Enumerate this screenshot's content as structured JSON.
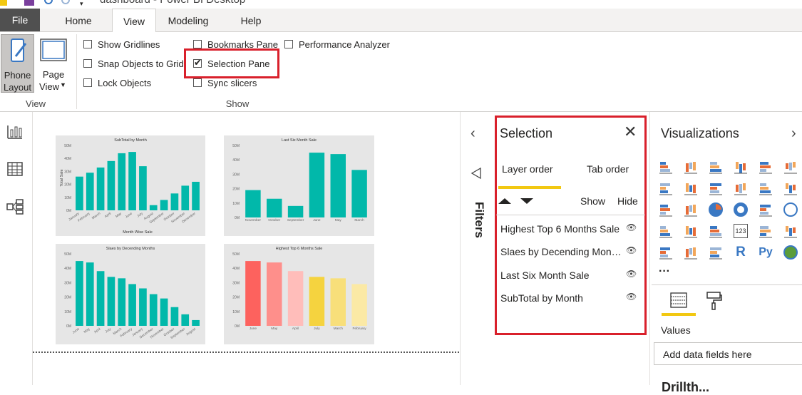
{
  "window": {
    "title": "dashboard - Power BI Desktop"
  },
  "ribbon_tabs": [
    "File",
    "Home",
    "View",
    "Modeling",
    "Help"
  ],
  "active_tab": "View",
  "view_group": {
    "phone_layout_line1": "Phone",
    "phone_layout_line2": "Layout",
    "page_view_line1": "Page",
    "page_view_line2": "View",
    "label": "View"
  },
  "show_group": {
    "label": "Show",
    "checkboxes": [
      {
        "label": "Show Gridlines",
        "checked": false
      },
      {
        "label": "Snap Objects to Grid",
        "checked": false
      },
      {
        "label": "Lock Objects",
        "checked": false
      },
      {
        "label": "Bookmarks Pane",
        "checked": false
      },
      {
        "label": "Selection Pane",
        "checked": true
      },
      {
        "label": "Sync slicers",
        "checked": false
      },
      {
        "label": "Performance Analyzer",
        "checked": false
      }
    ]
  },
  "filters": {
    "label": "Filters"
  },
  "selection_pane": {
    "title": "Selection",
    "tab_layer": "Layer order",
    "tab_tab": "Tab order",
    "show_label": "Show",
    "hide_label": "Hide",
    "items": [
      "Highest Top 6 Months Sale",
      "Slaes by Decending Mon…",
      "Last Six Month Sale",
      "SubTotal by Month"
    ]
  },
  "visualizations": {
    "title": "Visualizations",
    "more": "···",
    "values_label": "Values",
    "add_fields": "Add data fields here",
    "drill_partial": "Drillth..."
  },
  "colors": {
    "teal": "#01b8aa",
    "highlight_red": "#d9202b",
    "underline_yellow": "#f2c811",
    "grey_chart_bg": "#e6e6e6"
  },
  "chart_data": [
    {
      "type": "bar",
      "title": "SubTotal by Month",
      "xlabel": "Month Wise Sale",
      "ylabel": "Total Sale",
      "yticks": [
        "0M",
        "10M",
        "20M",
        "30M",
        "40M",
        "50M"
      ],
      "ylim": [
        0,
        50
      ],
      "categories": [
        "January",
        "February",
        "March",
        "April",
        "May",
        "June",
        "July",
        "August",
        "September",
        "October",
        "November",
        "December"
      ],
      "values": [
        26,
        29,
        33,
        38,
        44,
        45,
        34,
        4,
        8,
        13,
        19,
        22
      ],
      "color": "#01b8aa"
    },
    {
      "type": "bar",
      "title": "Last Six Month Sale",
      "xlabel": "",
      "ylabel": "",
      "yticks": [
        "0M",
        "10M",
        "20M",
        "30M",
        "40M",
        "50M"
      ],
      "ylim": [
        0,
        50
      ],
      "categories": [
        "November",
        "October",
        "September",
        "June",
        "May",
        "March"
      ],
      "values": [
        19,
        13,
        8,
        45,
        44,
        33
      ],
      "color": "#01b8aa"
    },
    {
      "type": "bar",
      "title": "Slaes by Decending Months",
      "xlabel": "",
      "ylabel": "",
      "yticks": [
        "0M",
        "10M",
        "20M",
        "30M",
        "40M",
        "50M"
      ],
      "ylim": [
        0,
        50
      ],
      "categories": [
        "June",
        "May",
        "April",
        "July",
        "March",
        "February",
        "January",
        "December",
        "November",
        "October",
        "September",
        "August"
      ],
      "values": [
        45,
        44,
        38,
        34,
        33,
        29,
        26,
        22,
        19,
        13,
        8,
        4
      ],
      "color": "#01b8aa"
    },
    {
      "type": "bar",
      "title": "Highest Top 6 Months Sale",
      "xlabel": "",
      "ylabel": "",
      "yticks": [
        "0M",
        "10M",
        "20M",
        "30M",
        "40M",
        "50M"
      ],
      "ylim": [
        0,
        50
      ],
      "categories": [
        "June",
        "May",
        "April",
        "July",
        "March",
        "February"
      ],
      "values": [
        45,
        44,
        38,
        34,
        33,
        29
      ],
      "colors": [
        "#fd625e",
        "#fe8f8b",
        "#ffbdba",
        "#f5d33f",
        "#f8df7a",
        "#fbe9a5"
      ]
    }
  ]
}
